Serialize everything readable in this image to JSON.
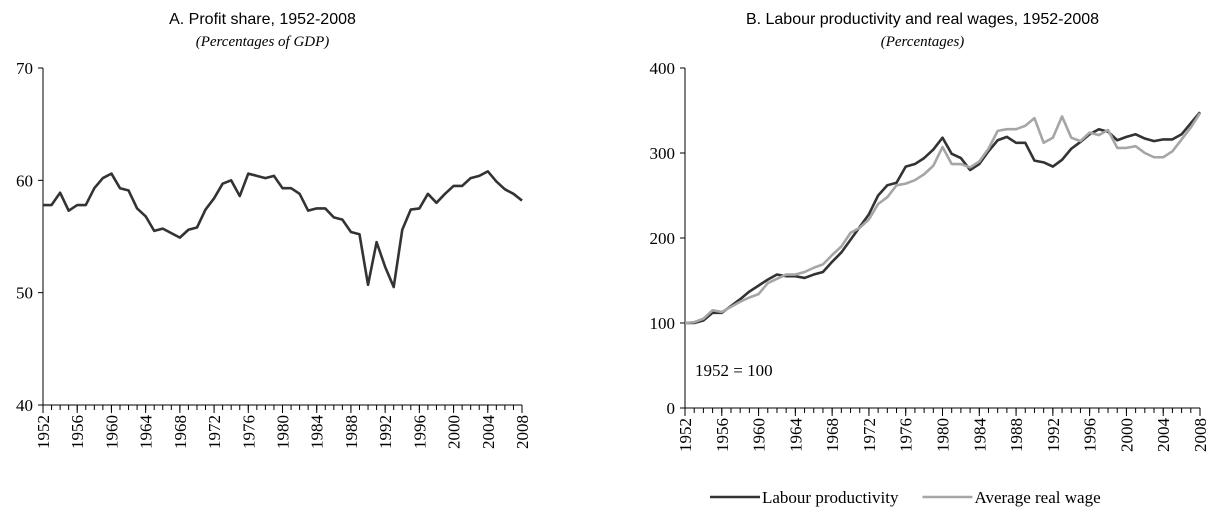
{
  "chart_data": [
    {
      "type": "line",
      "title": "A. Profit share, 1952-2008",
      "subtitle": "(Percentages of GDP)",
      "x": [
        1952,
        1953,
        1954,
        1955,
        1956,
        1957,
        1958,
        1959,
        1960,
        1961,
        1962,
        1963,
        1964,
        1965,
        1966,
        1967,
        1968,
        1969,
        1970,
        1971,
        1972,
        1973,
        1974,
        1975,
        1976,
        1977,
        1978,
        1979,
        1980,
        1981,
        1982,
        1983,
        1984,
        1985,
        1986,
        1987,
        1988,
        1989,
        1990,
        1991,
        1992,
        1993,
        1994,
        1995,
        1996,
        1997,
        1998,
        1999,
        2000,
        2001,
        2002,
        2003,
        2004,
        2005,
        2006,
        2007,
        2008
      ],
      "series": [
        {
          "name": null,
          "color": "#333333",
          "values": [
            57.8,
            57.8,
            58.9,
            57.3,
            57.8,
            57.8,
            59.3,
            60.2,
            60.6,
            59.3,
            59.1,
            57.5,
            56.8,
            55.5,
            55.7,
            55.3,
            54.9,
            55.6,
            55.8,
            57.4,
            58.4,
            59.7,
            60.0,
            58.6,
            60.6,
            60.4,
            60.2,
            60.4,
            59.3,
            59.3,
            58.8,
            57.3,
            57.5,
            57.5,
            56.7,
            56.5,
            55.4,
            55.2,
            50.7,
            54.5,
            52.3,
            50.5,
            55.6,
            57.4,
            57.5,
            58.8,
            58.0,
            58.8,
            59.5,
            59.5,
            60.2,
            60.4,
            60.8,
            59.9,
            59.2,
            58.8,
            58.2
          ]
        }
      ],
      "xlim": [
        1952,
        2008
      ],
      "xticks": [
        1952,
        1956,
        1960,
        1964,
        1968,
        1972,
        1976,
        1980,
        1984,
        1988,
        1992,
        1996,
        2000,
        2004,
        2008
      ],
      "ylim": [
        40,
        70
      ],
      "yticks": [
        40,
        50,
        60,
        70
      ]
    },
    {
      "type": "line",
      "title": "B. Labour productivity and real wages, 1952-2008",
      "subtitle": "(Percentages)",
      "annotation": "1952 = 100",
      "x": [
        1952,
        1953,
        1954,
        1955,
        1956,
        1957,
        1958,
        1959,
        1960,
        1961,
        1962,
        1963,
        1964,
        1965,
        1966,
        1967,
        1968,
        1969,
        1970,
        1971,
        1972,
        1973,
        1974,
        1975,
        1976,
        1977,
        1978,
        1979,
        1980,
        1981,
        1982,
        1983,
        1984,
        1985,
        1986,
        1987,
        1988,
        1989,
        1990,
        1991,
        1992,
        1993,
        1994,
        1995,
        1996,
        1997,
        1998,
        1999,
        2000,
        2001,
        2002,
        2003,
        2004,
        2005,
        2006,
        2007,
        2008
      ],
      "series": [
        {
          "name": "Labour productivity",
          "color": "#333333",
          "values": [
            100,
            100,
            103,
            112,
            112,
            120,
            128,
            137,
            144,
            151,
            157,
            155,
            155,
            153,
            157,
            160,
            172,
            183,
            198,
            213,
            228,
            250,
            262,
            265,
            284,
            287,
            294,
            304,
            318,
            299,
            294,
            280,
            287,
            302,
            315,
            319,
            312,
            312,
            291,
            289,
            284,
            292,
            305,
            313,
            322,
            328,
            325,
            315,
            319,
            322,
            317,
            314,
            316,
            316,
            322,
            335,
            348
          ]
        },
        {
          "name": "Average real wage",
          "color": "#a6a6a6",
          "values": [
            100,
            101,
            105,
            115,
            113,
            119,
            125,
            130,
            134,
            147,
            152,
            157,
            157,
            160,
            165,
            169,
            180,
            190,
            206,
            212,
            222,
            240,
            248,
            262,
            264,
            268,
            275,
            285,
            307,
            287,
            287,
            283,
            290,
            305,
            326,
            328,
            328,
            332,
            341,
            312,
            318,
            343,
            318,
            314,
            324,
            321,
            327,
            306,
            306,
            308,
            300,
            295,
            295,
            302,
            316,
            330,
            347
          ]
        }
      ],
      "xlim": [
        1952,
        2008
      ],
      "xticks": [
        1952,
        1956,
        1960,
        1964,
        1968,
        1972,
        1976,
        1980,
        1984,
        1988,
        1992,
        1996,
        2000,
        2004,
        2008
      ],
      "ylim": [
        0,
        400
      ],
      "yticks": [
        0,
        100,
        200,
        300,
        400
      ],
      "legend": "bottom"
    }
  ]
}
